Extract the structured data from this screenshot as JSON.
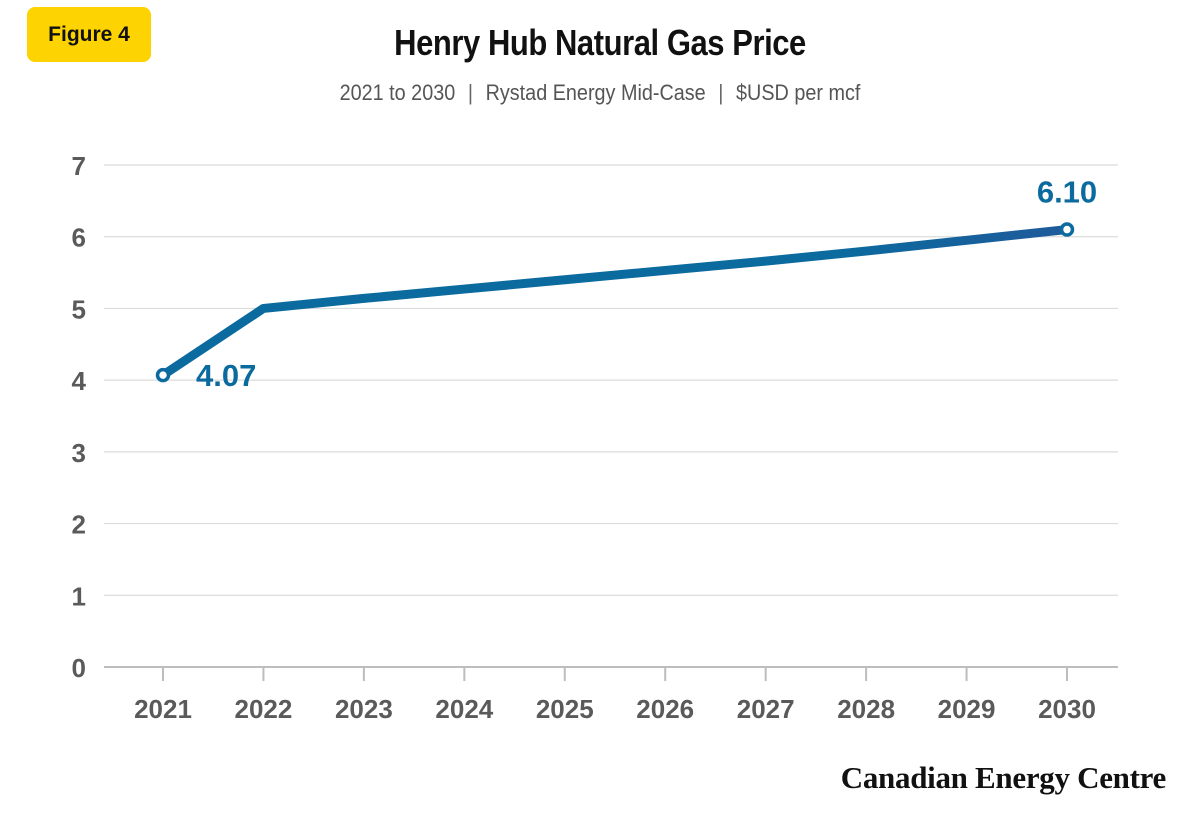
{
  "badge": {
    "label": "Figure 4"
  },
  "chart_data": {
    "type": "line",
    "title": "Henry Hub Natural Gas Price",
    "subtitle_parts": [
      "2021 to 2030",
      "Rystad Energy Mid-Case",
      "$USD per mcf"
    ],
    "x": [
      2021,
      2022,
      2023,
      2024,
      2025,
      2026,
      2027,
      2028,
      2029,
      2030
    ],
    "series": [
      {
        "values": [
          4.07,
          5.0,
          5.14,
          5.27,
          5.4,
          5.53,
          5.66,
          5.8,
          5.95,
          6.1
        ]
      }
    ],
    "ylim": [
      0,
      7
    ],
    "yticks": [
      "0",
      "1",
      "2",
      "3",
      "4",
      "5",
      "6",
      "7"
    ],
    "annotations": [
      {
        "label": "4.07",
        "x": 2021
      },
      {
        "label": "6.10",
        "x": 2030
      }
    ],
    "grid": true,
    "line_color": "#0b6a9e",
    "line_color_end": "#1f5a9a",
    "label_color": "#0b6a9e",
    "xlabel": "",
    "ylabel": ""
  },
  "footer": {
    "brand": "Canadian Energy Centre"
  }
}
